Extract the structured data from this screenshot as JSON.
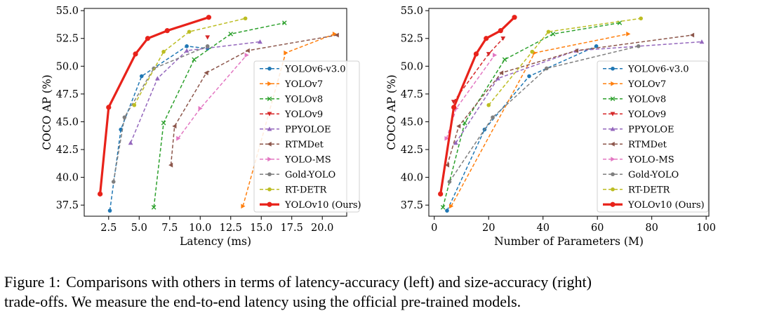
{
  "chart_data": [
    {
      "type": "line",
      "xlabel": "Latency (ms)",
      "ylabel": "COCO AP (%)",
      "xlim": [
        0.5,
        22.0
      ],
      "ylim": [
        36.5,
        55.2
      ],
      "xticks": [
        2.5,
        5.0,
        7.5,
        10.0,
        12.5,
        15.0,
        17.5,
        20.0
      ],
      "xtick_labels": [
        "2.5",
        "5.0",
        "7.5",
        "10.0",
        "12.5",
        "15.0",
        "17.5",
        "20.0"
      ],
      "yticks": [
        37.5,
        40.0,
        42.5,
        45.0,
        47.5,
        50.0,
        52.5,
        55.0
      ],
      "ytick_labels": [
        "37.5",
        "40.0",
        "42.5",
        "45.0",
        "47.5",
        "50.0",
        "52.5",
        "55.0"
      ],
      "legend_position": "lower right",
      "grid": false,
      "series": [
        {
          "name": "YOLOv6-v3.0",
          "color": "#1f77b4",
          "marker": "dot",
          "dashed": true,
          "x": [
            2.6,
            3.5,
            5.2,
            8.9,
            10.6
          ],
          "y": [
            37.0,
            44.3,
            49.1,
            51.8,
            51.6
          ]
        },
        {
          "name": "YOLOv7",
          "color": "#ff7f0e",
          "marker": "tri-right",
          "dashed": true,
          "x": [
            13.5,
            17.0,
            21.0
          ],
          "y": [
            37.4,
            51.2,
            52.9
          ]
        },
        {
          "name": "YOLOv8",
          "color": "#2ca02c",
          "marker": "x",
          "dashed": true,
          "x": [
            6.2,
            7.0,
            9.5,
            12.5,
            16.9
          ],
          "y": [
            37.3,
            44.9,
            50.6,
            52.9,
            53.9
          ]
        },
        {
          "name": "YOLOv9",
          "color": "#d62728",
          "marker": "tri-down",
          "dashed": true,
          "x": [
            10.6
          ],
          "y": [
            52.6
          ]
        },
        {
          "name": "PPYOLOE",
          "color": "#9467bd",
          "marker": "tri-up",
          "dashed": true,
          "x": [
            4.3,
            6.5,
            8.9,
            14.9
          ],
          "y": [
            43.1,
            48.9,
            51.4,
            52.2
          ]
        },
        {
          "name": "RTMDet",
          "color": "#8c564b",
          "marker": "tri-left",
          "dashed": true,
          "x": [
            7.6,
            7.9,
            10.5,
            13.9,
            21.2
          ],
          "y": [
            41.1,
            44.6,
            49.4,
            51.4,
            52.8
          ]
        },
        {
          "name": "YOLO-MS",
          "color": "#e377c2",
          "marker": "tri-right",
          "dashed": true,
          "x": [
            8.2,
            10.0,
            13.8
          ],
          "y": [
            43.5,
            46.2,
            51.0
          ]
        },
        {
          "name": "Gold-YOLO",
          "color": "#7f7f7f",
          "marker": "dot",
          "dashed": true,
          "x": [
            2.9,
            3.8,
            6.2,
            10.6
          ],
          "y": [
            39.6,
            45.4,
            49.8,
            51.8
          ]
        },
        {
          "name": "RT-DETR",
          "color": "#bcbd22",
          "marker": "dot",
          "dashed": true,
          "x": [
            4.6,
            7.0,
            9.1,
            13.7
          ],
          "y": [
            46.5,
            51.3,
            53.1,
            54.3
          ]
        },
        {
          "name": "YOLOv10 (Ours)",
          "color": "#e8221a",
          "marker": "dot",
          "dashed": false,
          "x": [
            1.8,
            2.5,
            4.7,
            5.7,
            7.3,
            10.7
          ],
          "y": [
            38.5,
            46.3,
            51.1,
            52.5,
            53.2,
            54.4
          ]
        }
      ]
    },
    {
      "type": "line",
      "xlabel": "Number of Parameters (M)",
      "ylabel": "COCO AP (%)",
      "xlim": [
        -2,
        101
      ],
      "ylim": [
        36.5,
        55.2
      ],
      "xticks": [
        0,
        20,
        40,
        60,
        80,
        100
      ],
      "xtick_labels": [
        "0",
        "20",
        "40",
        "60",
        "80",
        "100"
      ],
      "yticks": [
        37.5,
        40.0,
        42.5,
        45.0,
        47.5,
        50.0,
        52.5,
        55.0
      ],
      "ytick_labels": [
        "37.5",
        "40.0",
        "42.5",
        "45.0",
        "47.5",
        "50.0",
        "52.5",
        "55.0"
      ],
      "legend_position": "lower right",
      "grid": false,
      "series": [
        {
          "name": "YOLOv6-v3.0",
          "color": "#1f77b4",
          "marker": "dot",
          "dashed": true,
          "x": [
            4.7,
            18.5,
            34.9,
            59.6
          ],
          "y": [
            37.0,
            44.3,
            49.1,
            51.8
          ]
        },
        {
          "name": "YOLOv7",
          "color": "#ff7f0e",
          "marker": "tri-right",
          "dashed": true,
          "x": [
            6.2,
            36.9,
            71.3
          ],
          "y": [
            37.4,
            51.2,
            52.9
          ]
        },
        {
          "name": "YOLOv8",
          "color": "#2ca02c",
          "marker": "x",
          "dashed": true,
          "x": [
            3.2,
            11.2,
            25.9,
            43.7,
            68.2
          ],
          "y": [
            37.3,
            44.9,
            50.6,
            52.9,
            53.9
          ]
        },
        {
          "name": "YOLOv9",
          "color": "#d62728",
          "marker": "tri-down",
          "dashed": true,
          "x": [
            7.1,
            20.0,
            25.3
          ],
          "y": [
            46.8,
            51.1,
            52.5
          ]
        },
        {
          "name": "PPYOLOE",
          "color": "#9467bd",
          "marker": "tri-up",
          "dashed": true,
          "x": [
            7.9,
            23.4,
            52.2,
            98.4
          ],
          "y": [
            43.1,
            48.9,
            51.4,
            52.2
          ]
        },
        {
          "name": "RTMDet",
          "color": "#8c564b",
          "marker": "tri-left",
          "dashed": true,
          "x": [
            4.8,
            9.0,
            24.7,
            52.3,
            94.9
          ],
          "y": [
            41.1,
            44.6,
            49.4,
            51.4,
            52.8
          ]
        },
        {
          "name": "YOLO-MS",
          "color": "#e377c2",
          "marker": "tri-right",
          "dashed": true,
          "x": [
            4.5,
            8.1,
            22.2
          ],
          "y": [
            43.5,
            46.2,
            51.0
          ]
        },
        {
          "name": "Gold-YOLO",
          "color": "#7f7f7f",
          "marker": "dot",
          "dashed": true,
          "x": [
            5.6,
            21.5,
            41.3,
            75.1
          ],
          "y": [
            39.6,
            45.4,
            49.8,
            51.8
          ]
        },
        {
          "name": "RT-DETR",
          "color": "#bcbd22",
          "marker": "dot",
          "dashed": true,
          "x": [
            20.0,
            36.0,
            42.0,
            76.0
          ],
          "y": [
            46.5,
            51.3,
            53.1,
            54.3
          ]
        },
        {
          "name": "YOLOv10 (Ours)",
          "color": "#e8221a",
          "marker": "dot",
          "dashed": false,
          "x": [
            2.3,
            7.2,
            15.4,
            19.1,
            24.4,
            29.5
          ],
          "y": [
            38.5,
            46.3,
            51.1,
            52.5,
            53.2,
            54.4
          ]
        }
      ]
    }
  ],
  "caption": {
    "label": "Figure 1:",
    "line1": "Comparisons with others in terms of latency-accuracy (left) and size-accuracy (right)",
    "line2": "trade-offs. We measure the end-to-end latency using the official pre-trained models."
  }
}
